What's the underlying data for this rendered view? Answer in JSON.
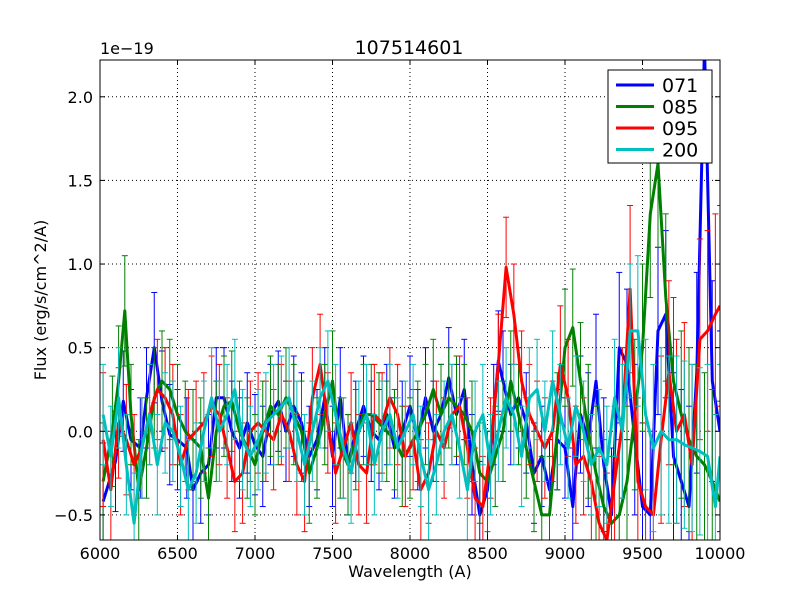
{
  "chart_data": {
    "type": "line",
    "title": "107514601",
    "xlabel": "Wavelength (A)",
    "ylabel": "Flux (erg/s/cm^2/A)",
    "y_offset_label": "1e−19",
    "xlim": [
      6000,
      10000
    ],
    "ylim": [
      -0.65,
      2.22
    ],
    "x_ticks": [
      6000,
      6500,
      7000,
      7500,
      8000,
      8500,
      9000,
      9500,
      10000
    ],
    "x_tick_labels": [
      "6000",
      "6500",
      "7000",
      "7500",
      "8000",
      "8500",
      "9000",
      "9500",
      "10000"
    ],
    "y_ticks": [
      -0.5,
      0.0,
      0.5,
      1.0,
      1.5,
      2.0
    ],
    "y_tick_labels": [
      "−0.5",
      "0.0",
      "0.5",
      "1.0",
      "1.5",
      "2.0"
    ],
    "grid": true,
    "legend_position": "top-right",
    "series": [
      {
        "name": "071",
        "color": "#0000ff",
        "x": [
          6020,
          6100,
          6150,
          6200,
          6260,
          6300,
          6350,
          6400,
          6450,
          6500,
          6560,
          6600,
          6650,
          6700,
          6750,
          6800,
          6850,
          6900,
          6950,
          7000,
          7050,
          7100,
          7150,
          7200,
          7250,
          7300,
          7350,
          7400,
          7450,
          7500,
          7550,
          7600,
          7650,
          7700,
          7750,
          7800,
          7850,
          7900,
          7950,
          8000,
          8050,
          8100,
          8150,
          8200,
          8250,
          8300,
          8350,
          8400,
          8450,
          8500,
          8540,
          8570,
          8600,
          8650,
          8700,
          8750,
          8800,
          8850,
          8900,
          8950,
          9000,
          9050,
          9100,
          9150,
          9200,
          9250,
          9300,
          9350,
          9400,
          9450,
          9500,
          9550,
          9600,
          9650,
          9700,
          9750,
          9800,
          9850,
          9900,
          9950,
          10000
        ],
        "values": [
          -0.42,
          -0.18,
          0.18,
          -0.05,
          -0.1,
          0.2,
          0.5,
          0.18,
          -0.02,
          -0.05,
          -0.1,
          -0.35,
          -0.25,
          -0.2,
          0.2,
          0.2,
          0.0,
          -0.1,
          0.05,
          -0.08,
          -0.15,
          0.1,
          0.18,
          0.0,
          0.15,
          0.05,
          -0.15,
          -0.05,
          0.2,
          -0.15,
          0.2,
          -0.2,
          0.0,
          0.15,
          0.0,
          -0.05,
          0.1,
          -0.1,
          0.0,
          0.15,
          -0.05,
          0.2,
          0.0,
          0.1,
          0.32,
          0.1,
          0.25,
          -0.2,
          -0.5,
          -0.35,
          0.1,
          0.42,
          0.3,
          0.1,
          0.2,
          0.05,
          -0.25,
          -0.15,
          -0.35,
          -0.05,
          -0.1,
          -0.45,
          0.1,
          -0.05,
          0.3,
          -0.2,
          -0.5,
          0.5,
          0.4,
          -0.05,
          -0.45,
          -0.5,
          0.6,
          0.7,
          -0.15,
          -0.3,
          -0.45,
          0.35,
          2.3,
          0.3,
          0.0
        ],
        "errors": [
          0.35,
          0.3,
          0.3,
          0.3,
          0.3,
          0.3,
          0.33,
          0.3,
          0.3,
          0.3,
          0.3,
          0.3,
          0.3,
          0.3,
          0.3,
          0.3,
          0.3,
          0.3,
          0.3,
          0.3,
          0.3,
          0.3,
          0.3,
          0.3,
          0.3,
          0.3,
          0.3,
          0.3,
          0.3,
          0.3,
          0.3,
          0.3,
          0.3,
          0.3,
          0.3,
          0.3,
          0.3,
          0.3,
          0.3,
          0.3,
          0.3,
          0.3,
          0.3,
          0.3,
          0.3,
          0.3,
          0.3,
          0.3,
          0.32,
          0.35,
          0.3,
          0.3,
          0.3,
          0.3,
          0.3,
          0.3,
          0.3,
          0.3,
          0.3,
          0.3,
          0.3,
          0.35,
          0.35,
          0.4,
          0.4,
          0.4,
          0.4,
          0.45,
          0.45,
          0.45,
          0.5,
          0.5,
          0.5,
          0.5,
          0.5,
          0.55,
          0.6,
          0.6,
          0.6,
          0.6,
          0.6
        ]
      },
      {
        "name": "085",
        "color": "#008000",
        "x": [
          6020,
          6080,
          6120,
          6160,
          6200,
          6250,
          6300,
          6350,
          6400,
          6450,
          6500,
          6550,
          6600,
          6650,
          6700,
          6750,
          6800,
          6850,
          6900,
          6950,
          7000,
          7050,
          7100,
          7150,
          7200,
          7250,
          7300,
          7350,
          7400,
          7450,
          7500,
          7550,
          7600,
          7650,
          7700,
          7750,
          7800,
          7850,
          7900,
          7950,
          8000,
          8050,
          8100,
          8150,
          8200,
          8250,
          8300,
          8350,
          8400,
          8450,
          8500,
          8550,
          8600,
          8650,
          8700,
          8750,
          8800,
          8850,
          8900,
          8950,
          9000,
          9050,
          9100,
          9150,
          9200,
          9250,
          9300,
          9350,
          9400,
          9450,
          9500,
          9550,
          9600,
          9650,
          9700,
          9750,
          9800,
          9850,
          9900,
          9950,
          10000
        ],
        "values": [
          -0.3,
          0.0,
          0.3,
          0.72,
          0.1,
          -0.35,
          -0.1,
          0.2,
          0.3,
          0.25,
          0.1,
          0.0,
          -0.05,
          -0.1,
          -0.4,
          0.0,
          0.15,
          0.18,
          0.0,
          -0.1,
          -0.2,
          0.0,
          0.15,
          0.1,
          0.2,
          0.1,
          0.0,
          -0.25,
          -0.1,
          0.1,
          0.3,
          -0.1,
          -0.2,
          -0.05,
          0.1,
          0.1,
          0.05,
          0.0,
          -0.05,
          -0.15,
          -0.1,
          0.0,
          0.1,
          0.25,
          0.1,
          0.2,
          0.15,
          0.1,
          0.0,
          -0.25,
          -0.3,
          -0.15,
          0.0,
          0.3,
          0.1,
          -0.1,
          -0.3,
          -0.5,
          -0.5,
          0.0,
          0.5,
          0.62,
          0.3,
          0.0,
          -0.25,
          -0.45,
          -0.55,
          -0.5,
          -0.3,
          0.1,
          0.5,
          1.3,
          1.6,
          0.8,
          0.3,
          0.1,
          -0.05,
          -0.15,
          -0.2,
          -0.3,
          -0.42
        ],
        "errors": [
          0.35,
          0.33,
          0.33,
          0.33,
          0.3,
          0.3,
          0.3,
          0.3,
          0.3,
          0.3,
          0.3,
          0.3,
          0.3,
          0.3,
          0.3,
          0.3,
          0.3,
          0.3,
          0.3,
          0.3,
          0.3,
          0.3,
          0.3,
          0.3,
          0.3,
          0.3,
          0.3,
          0.3,
          0.3,
          0.3,
          0.3,
          0.3,
          0.3,
          0.3,
          0.3,
          0.3,
          0.3,
          0.3,
          0.3,
          0.3,
          0.3,
          0.3,
          0.3,
          0.3,
          0.3,
          0.3,
          0.3,
          0.3,
          0.3,
          0.3,
          0.3,
          0.3,
          0.3,
          0.3,
          0.3,
          0.3,
          0.3,
          0.35,
          0.35,
          0.35,
          0.35,
          0.35,
          0.35,
          0.4,
          0.4,
          0.4,
          0.4,
          0.45,
          0.45,
          0.45,
          0.5,
          0.5,
          0.5,
          0.5,
          0.5,
          0.5,
          0.55,
          0.55,
          0.55,
          0.55,
          0.6
        ]
      },
      {
        "name": "095",
        "color": "#ff0000",
        "x": [
          6020,
          6070,
          6120,
          6170,
          6220,
          6270,
          6320,
          6370,
          6420,
          6470,
          6520,
          6570,
          6620,
          6670,
          6720,
          6770,
          6820,
          6870,
          6920,
          6970,
          7020,
          7070,
          7120,
          7170,
          7220,
          7270,
          7320,
          7370,
          7420,
          7470,
          7520,
          7570,
          7620,
          7670,
          7720,
          7770,
          7820,
          7870,
          7920,
          7970,
          8020,
          8070,
          8120,
          8170,
          8220,
          8270,
          8320,
          8370,
          8420,
          8470,
          8520,
          8570,
          8620,
          8670,
          8720,
          8770,
          8820,
          8870,
          8920,
          8970,
          9020,
          9070,
          9120,
          9170,
          9220,
          9270,
          9320,
          9370,
          9420,
          9470,
          9520,
          9570,
          9620,
          9670,
          9720,
          9770,
          9820,
          9870,
          9920,
          9970,
          10000
        ],
        "values": [
          -0.05,
          -0.35,
          0.05,
          -0.05,
          -0.2,
          -0.1,
          0.1,
          0.25,
          0.2,
          0.1,
          -0.2,
          -0.05,
          0.0,
          0.05,
          0.15,
          0.1,
          -0.1,
          -0.3,
          -0.25,
          0.0,
          0.05,
          0.0,
          -0.05,
          0.1,
          0.0,
          -0.2,
          -0.3,
          0.2,
          0.4,
          0.05,
          -0.25,
          -0.1,
          0.05,
          -0.2,
          -0.25,
          0.1,
          0.05,
          0.2,
          0.1,
          -0.15,
          -0.05,
          -0.35,
          -0.25,
          0.0,
          -0.1,
          0.1,
          0.15,
          -0.1,
          -0.4,
          -0.45,
          -0.1,
          0.4,
          0.98,
          0.7,
          0.3,
          0.1,
          0.0,
          -0.1,
          0.0,
          0.4,
          0.2,
          -0.2,
          -0.15,
          -0.3,
          -0.55,
          -0.65,
          -0.3,
          0.05,
          0.85,
          -0.3,
          -0.45,
          -0.5,
          -0.05,
          0.35,
          0.0,
          0.1,
          -0.2,
          0.55,
          0.6,
          0.7,
          0.75
        ],
        "errors": [
          0.4,
          0.35,
          0.33,
          0.33,
          0.3,
          0.3,
          0.3,
          0.3,
          0.3,
          0.3,
          0.3,
          0.3,
          0.3,
          0.3,
          0.3,
          0.3,
          0.3,
          0.3,
          0.3,
          0.3,
          0.3,
          0.3,
          0.3,
          0.3,
          0.3,
          0.3,
          0.3,
          0.3,
          0.3,
          0.3,
          0.3,
          0.3,
          0.3,
          0.3,
          0.3,
          0.3,
          0.3,
          0.3,
          0.3,
          0.3,
          0.3,
          0.3,
          0.3,
          0.3,
          0.3,
          0.3,
          0.3,
          0.3,
          0.3,
          0.3,
          0.3,
          0.3,
          0.3,
          0.3,
          0.3,
          0.3,
          0.3,
          0.3,
          0.3,
          0.35,
          0.35,
          0.35,
          0.35,
          0.4,
          0.4,
          0.4,
          0.45,
          0.45,
          0.5,
          0.5,
          0.5,
          0.5,
          0.5,
          0.55,
          0.55,
          0.55,
          0.6,
          0.6,
          0.6,
          0.6,
          0.6
        ]
      },
      {
        "name": "200",
        "color": "#00bfbf",
        "x": [
          6020,
          6070,
          6120,
          6170,
          6220,
          6270,
          6320,
          6370,
          6420,
          6470,
          6520,
          6570,
          6620,
          6670,
          6720,
          6770,
          6820,
          6870,
          6920,
          6970,
          7020,
          7070,
          7120,
          7170,
          7220,
          7270,
          7320,
          7370,
          7420,
          7470,
          7520,
          7570,
          7620,
          7670,
          7720,
          7770,
          7820,
          7870,
          7920,
          7970,
          8020,
          8070,
          8120,
          8170,
          8220,
          8270,
          8320,
          8370,
          8420,
          8470,
          8520,
          8570,
          8620,
          8670,
          8720,
          8770,
          8820,
          8870,
          8920,
          8970,
          9020,
          9070,
          9120,
          9170,
          9220,
          9270,
          9320,
          9370,
          9420,
          9470,
          9520,
          9570,
          9620,
          9670,
          9720,
          9770,
          9820,
          9870,
          9920,
          9970,
          10000
        ],
        "values": [
          0.1,
          -0.15,
          0.2,
          -0.2,
          -0.55,
          -0.1,
          0.1,
          -0.2,
          0.05,
          0.0,
          -0.15,
          -0.35,
          -0.25,
          0.0,
          0.2,
          0.0,
          0.1,
          0.25,
          -0.05,
          -0.15,
          -0.05,
          0.05,
          0.1,
          0.15,
          0.2,
          0.0,
          -0.2,
          0.0,
          0.2,
          0.3,
          0.1,
          -0.1,
          -0.25,
          0.0,
          0.1,
          -0.2,
          0.0,
          0.1,
          -0.1,
          0.0,
          0.1,
          -0.15,
          -0.35,
          -0.2,
          0.0,
          0.1,
          -0.1,
          -0.35,
          0.0,
          0.1,
          -0.2,
          0.0,
          0.2,
          0.1,
          -0.15,
          0.2,
          0.25,
          0.0,
          0.3,
          0.1,
          -0.1,
          0.15,
          0.0,
          -0.2,
          -0.1,
          -0.2,
          0.2,
          0.0,
          0.6,
          0.6,
          0.1,
          -0.1,
          0.0,
          -0.05,
          -0.05,
          -0.08,
          -0.1,
          -0.12,
          -0.15,
          -0.45,
          -0.15
        ],
        "errors": [
          0.3,
          0.3,
          0.3,
          0.3,
          0.3,
          0.3,
          0.3,
          0.3,
          0.3,
          0.3,
          0.3,
          0.3,
          0.3,
          0.3,
          0.3,
          0.3,
          0.3,
          0.3,
          0.3,
          0.3,
          0.3,
          0.3,
          0.3,
          0.3,
          0.3,
          0.3,
          0.3,
          0.3,
          0.3,
          0.3,
          0.3,
          0.3,
          0.3,
          0.3,
          0.3,
          0.3,
          0.3,
          0.3,
          0.3,
          0.3,
          0.3,
          0.3,
          0.3,
          0.3,
          0.3,
          0.3,
          0.3,
          0.3,
          0.3,
          0.3,
          0.3,
          0.3,
          0.3,
          0.3,
          0.3,
          0.3,
          0.3,
          0.3,
          0.3,
          0.3,
          0.3,
          0.3,
          0.3,
          0.3,
          0.35,
          0.35,
          0.35,
          0.4,
          0.4,
          0.45,
          0.45,
          0.5,
          0.5,
          0.5,
          0.5,
          0.5,
          0.5,
          0.5,
          0.55,
          0.55,
          0.55
        ]
      }
    ]
  }
}
